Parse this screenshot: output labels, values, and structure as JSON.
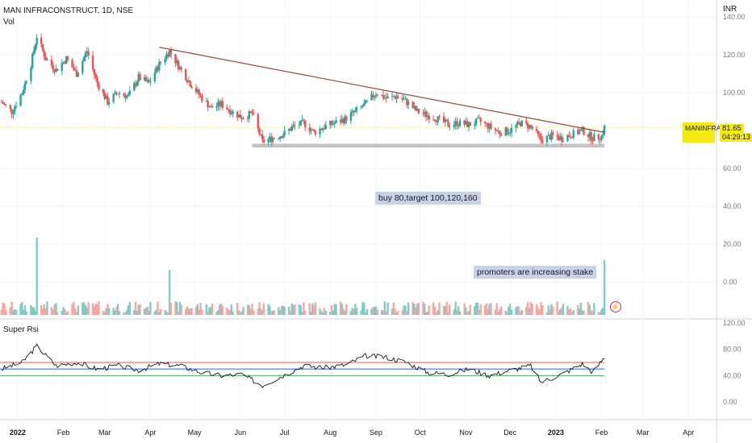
{
  "header": {
    "title": "MAN INFRACONSTRUCT, 1D, NSE",
    "volume_label": "Vol",
    "currency": "INR"
  },
  "price_tag": {
    "symbol": "MANINFRA",
    "value": "81.65",
    "countdown": "04:29:13"
  },
  "notes": {
    "trade_plan": "buy 80,target 100,120,160",
    "promoters": "promoters are increasing stake"
  },
  "rsi_pane": {
    "title": "Super Rsi",
    "axis_ticks": [
      "120.00",
      "80.00",
      "40.00",
      "0.00"
    ],
    "levels": [
      60,
      50,
      40
    ]
  },
  "colors": {
    "up": "#26a69a",
    "down": "#ef5350",
    "vol_up": "#80cbc4",
    "vol_down": "#f7a6a4",
    "trendline": "#a0453a",
    "support": "#c4c4c4",
    "rsi_line": "#131722",
    "rsi_high": "#ef5350",
    "rsi_mid": "#2962ff",
    "rsi_low": "#4caf50"
  },
  "chart_data": [
    {
      "type": "candlestick",
      "title": "MAN INFRACONSTRUCT, 1D, NSE",
      "y_axis_ticks": [
        "140.00",
        "120.00",
        "100.00",
        "60.00",
        "40.00",
        "20.00",
        "0.00"
      ],
      "x_axis_ticks": [
        "2022",
        "Feb",
        "Mar",
        "Apr",
        "May",
        "Jun",
        "Jul",
        "Aug",
        "Sep",
        "Oct",
        "Nov",
        "Dec",
        "2023",
        "Feb",
        "Mar",
        "Apr"
      ],
      "ylim": [
        -10,
        145
      ],
      "close_series": [
        [
          "2021-12-21",
          95
        ],
        [
          "2021-12-28",
          90
        ],
        [
          "2022-01-04",
          100
        ],
        [
          "2022-01-10",
          115
        ],
        [
          "2022-01-14",
          130
        ],
        [
          "2022-01-20",
          118
        ],
        [
          "2022-01-27",
          112
        ],
        [
          "2022-02-03",
          118
        ],
        [
          "2022-02-10",
          110
        ],
        [
          "2022-02-17",
          122
        ],
        [
          "2022-02-24",
          105
        ],
        [
          "2022-03-03",
          95
        ],
        [
          "2022-03-10",
          100
        ],
        [
          "2022-03-17",
          98
        ],
        [
          "2022-03-24",
          108
        ],
        [
          "2022-03-31",
          105
        ],
        [
          "2022-04-07",
          115
        ],
        [
          "2022-04-14",
          122
        ],
        [
          "2022-04-21",
          113
        ],
        [
          "2022-04-28",
          105
        ],
        [
          "2022-05-05",
          98
        ],
        [
          "2022-05-12",
          92
        ],
        [
          "2022-05-19",
          94
        ],
        [
          "2022-05-26",
          90
        ],
        [
          "2022-06-02",
          87
        ],
        [
          "2022-06-09",
          89
        ],
        [
          "2022-06-16",
          74
        ],
        [
          "2022-06-23",
          76
        ],
        [
          "2022-06-30",
          78
        ],
        [
          "2022-07-07",
          82
        ],
        [
          "2022-07-14",
          84
        ],
        [
          "2022-07-21",
          79
        ],
        [
          "2022-07-28",
          82
        ],
        [
          "2022-08-04",
          84
        ],
        [
          "2022-08-11",
          86
        ],
        [
          "2022-08-18",
          90
        ],
        [
          "2022-08-25",
          94
        ],
        [
          "2022-09-01",
          100
        ],
        [
          "2022-09-08",
          97
        ],
        [
          "2022-09-15",
          98
        ],
        [
          "2022-09-22",
          95
        ],
        [
          "2022-09-29",
          90
        ],
        [
          "2022-10-06",
          88
        ],
        [
          "2022-10-13",
          86
        ],
        [
          "2022-10-20",
          83
        ],
        [
          "2022-10-27",
          84
        ],
        [
          "2022-11-03",
          83
        ],
        [
          "2022-11-10",
          85
        ],
        [
          "2022-11-17",
          82
        ],
        [
          "2022-11-24",
          79
        ],
        [
          "2022-12-01",
          80
        ],
        [
          "2022-12-08",
          84
        ],
        [
          "2022-12-15",
          82
        ],
        [
          "2022-12-22",
          75
        ],
        [
          "2022-12-29",
          77
        ],
        [
          "2023-01-05",
          76
        ],
        [
          "2023-01-12",
          78
        ],
        [
          "2023-01-19",
          80
        ],
        [
          "2023-01-26",
          76
        ],
        [
          "2023-02-01",
          77
        ],
        [
          "2023-02-03",
          81.65
        ]
      ],
      "trendline": {
        "from": [
          "2022-04-07",
          124
        ],
        "to": [
          "2023-02-03",
          79
        ]
      },
      "support_zone": {
        "from": "2022-06-09",
        "to": "2023-02-03",
        "low": 71,
        "high": 73
      },
      "last_price": 81.65
    },
    {
      "type": "bar",
      "title": "Vol",
      "note": "volume spikes around Jan 2022, Apr 2022 and Feb 2023",
      "spikes": [
        [
          "2022-01-14",
          "high"
        ],
        [
          "2022-04-14",
          "medium"
        ],
        [
          "2023-02-03",
          "high"
        ]
      ]
    },
    {
      "type": "line",
      "title": "Super Rsi",
      "ylim": [
        -20,
        130
      ],
      "y_axis_ticks": [
        "120.00",
        "80.00",
        "40.00",
        "0.00"
      ],
      "levels": [
        60,
        50,
        40
      ],
      "close_series": [
        [
          "2021-12-21",
          50
        ],
        [
          "2022-01-04",
          60
        ],
        [
          "2022-01-14",
          85
        ],
        [
          "2022-01-27",
          55
        ],
        [
          "2022-02-10",
          60
        ],
        [
          "2022-02-24",
          50
        ],
        [
          "2022-03-10",
          55
        ],
        [
          "2022-03-24",
          48
        ],
        [
          "2022-04-07",
          58
        ],
        [
          "2022-04-21",
          55
        ],
        [
          "2022-05-05",
          45
        ],
        [
          "2022-05-19",
          40
        ],
        [
          "2022-06-02",
          42
        ],
        [
          "2022-06-16",
          25
        ],
        [
          "2022-06-30",
          40
        ],
        [
          "2022-07-14",
          55
        ],
        [
          "2022-07-28",
          52
        ],
        [
          "2022-08-11",
          56
        ],
        [
          "2022-08-25",
          70
        ],
        [
          "2022-09-08",
          68
        ],
        [
          "2022-09-22",
          60
        ],
        [
          "2022-10-06",
          45
        ],
        [
          "2022-10-20",
          42
        ],
        [
          "2022-11-03",
          50
        ],
        [
          "2022-11-17",
          40
        ],
        [
          "2022-12-01",
          48
        ],
        [
          "2022-12-15",
          55
        ],
        [
          "2022-12-22",
          30
        ],
        [
          "2023-01-05",
          42
        ],
        [
          "2023-01-19",
          58
        ],
        [
          "2023-01-26",
          45
        ],
        [
          "2023-02-03",
          68
        ]
      ]
    }
  ]
}
